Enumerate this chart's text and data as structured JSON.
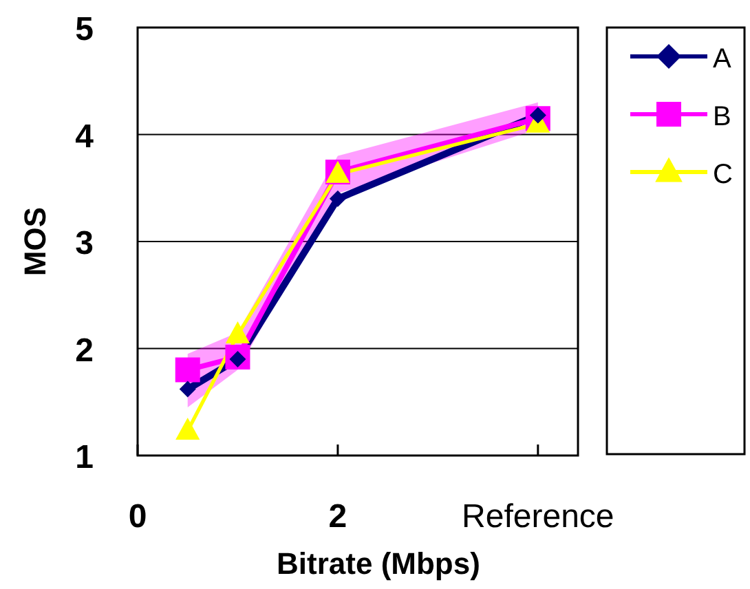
{
  "chart_data": {
    "type": "line",
    "xlabel": "Bitrate (Mbps)",
    "ylabel": "MOS",
    "x": [
      0.5,
      1,
      2,
      4
    ],
    "xlim": [
      0,
      4.4
    ],
    "xticks": [
      0,
      2,
      {
        "value": 4,
        "label": "Reference"
      }
    ],
    "ylim": [
      1,
      5
    ],
    "yticks": [
      1,
      2,
      3,
      4,
      5
    ],
    "grid": "y",
    "legend": "top right",
    "series": [
      {
        "name": "A",
        "color": "#000080",
        "marker": "diamond",
        "values": [
          1.62,
          1.9,
          3.4,
          4.18
        ]
      },
      {
        "name": "B",
        "color": "#ff00ff",
        "marker": "square",
        "values": [
          1.8,
          1.92,
          3.65,
          4.15
        ],
        "lower": [
          1.45,
          1.8,
          3.45,
          4.05
        ],
        "upper": [
          1.95,
          2.15,
          3.8,
          4.3
        ]
      },
      {
        "name": "C",
        "color": "#ffff00",
        "marker": "triangle",
        "values": [
          1.23,
          2.13,
          3.63,
          4.1
        ]
      }
    ]
  }
}
